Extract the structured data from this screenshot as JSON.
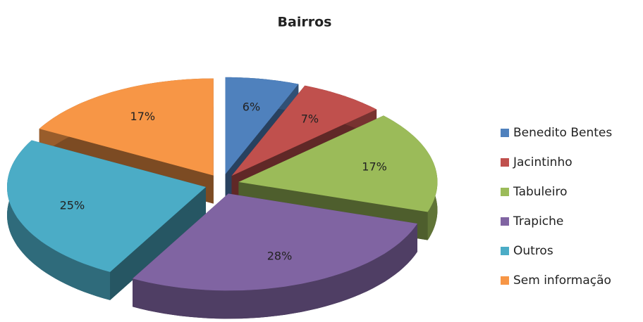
{
  "chart_data": {
    "type": "pie",
    "title": "Bairros",
    "categories": [
      "Benedito Bentes",
      "Jacintinho",
      "Tabuleiro",
      "Trapiche",
      "Outros",
      "Sem informação"
    ],
    "values": [
      6,
      7,
      17,
      28,
      25,
      17
    ],
    "value_labels": [
      "6%",
      "7%",
      "17%",
      "28%",
      "25%",
      "17%"
    ],
    "colors": [
      "#4f81bd",
      "#c0504d",
      "#9bbb59",
      "#8064a2",
      "#4bacc6",
      "#f79646"
    ],
    "legend": "right"
  }
}
